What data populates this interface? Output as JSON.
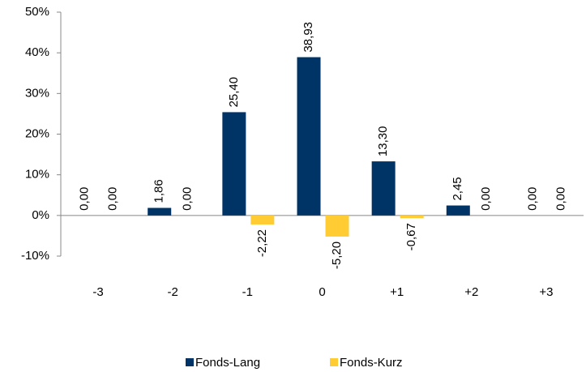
{
  "chart_data": {
    "type": "bar",
    "categories": [
      "-3",
      "-2",
      "-1",
      "0",
      "+1",
      "+2",
      "+3"
    ],
    "series": [
      {
        "name": "Fonds-Lang",
        "color": "#003366",
        "values": [
          0,
          1.86,
          25.4,
          38.93,
          13.3,
          2.45,
          0
        ],
        "value_labels": [
          "0,00",
          "1,86",
          "25,40",
          "38,93",
          "13,30",
          "2,45",
          "0,00"
        ]
      },
      {
        "name": "Fonds-Kurz",
        "color": "#FFCC33",
        "values": [
          0,
          0,
          -2.22,
          -5.2,
          -0.67,
          0,
          0
        ],
        "value_labels": [
          "0,00",
          "0,00",
          "-2,22",
          "-5,20",
          "-0,67",
          "0,00",
          "0,00"
        ]
      }
    ],
    "ylim": [
      -10,
      50
    ],
    "yticks": [
      {
        "value": -10,
        "label": "-10%"
      },
      {
        "value": 0,
        "label": "0%"
      },
      {
        "value": 10,
        "label": "10%"
      },
      {
        "value": 20,
        "label": "20%"
      },
      {
        "value": 30,
        "label": "30%"
      },
      {
        "value": 40,
        "label": "40%"
      },
      {
        "value": 50,
        "label": "50%"
      }
    ],
    "legend": "bottom"
  }
}
